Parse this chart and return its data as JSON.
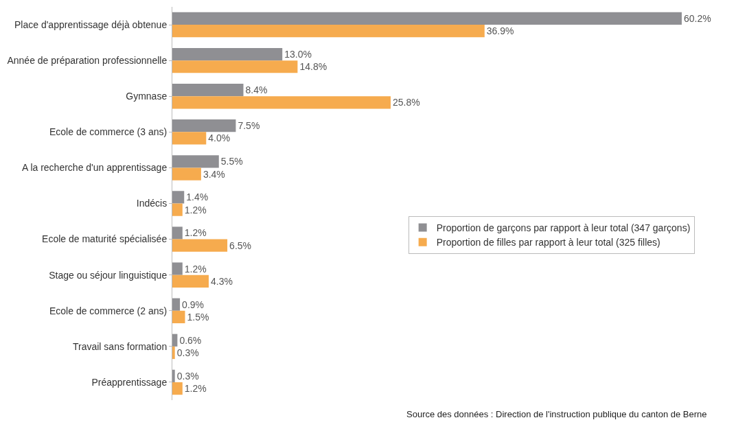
{
  "chart_data": {
    "type": "bar",
    "orientation": "horizontal",
    "categories": [
      "Place d'apprentissage déjà obtenue",
      "Année de préparation professionnelle",
      "Gymnase",
      "Ecole de commerce (3 ans)",
      "A la recherche d'un apprentissage",
      "Indécis",
      "Ecole de maturité spécialisée",
      "Stage ou séjour linguistique",
      "Ecole de commerce (2 ans)",
      "Travail sans formation",
      "Préapprentissage"
    ],
    "series": [
      {
        "name": "Proportion de garçons par rapport à leur total (347 garçons)",
        "color": "#8f8f93",
        "values": [
          60.2,
          13.0,
          8.4,
          7.5,
          5.5,
          1.4,
          1.2,
          1.2,
          0.9,
          0.6,
          0.3
        ],
        "value_labels": [
          "60.2%",
          "13.0%",
          "8.4%",
          "7.5%",
          "5.5%",
          "1.4%",
          "1.2%",
          "1.2%",
          "0.9%",
          "0.6%",
          "0.3%"
        ]
      },
      {
        "name": "Proportion de filles par rapport à leur total (325 filles)",
        "color": "#f6ab4e",
        "values": [
          36.9,
          14.8,
          25.8,
          4.0,
          3.4,
          1.2,
          6.5,
          4.3,
          1.5,
          0.3,
          1.2
        ],
        "value_labels": [
          "36.9%",
          "14.8%",
          "25.8%",
          "4.0%",
          "3.4%",
          "1.2%",
          "6.5%",
          "4.3%",
          "1.5%",
          "0.3%",
          "1.2%"
        ]
      }
    ],
    "tick_labels": "y",
    "legend": "right",
    "annotations": [
      "Source des données : Direction de l'instruction publique du canton de Berne"
    ]
  }
}
